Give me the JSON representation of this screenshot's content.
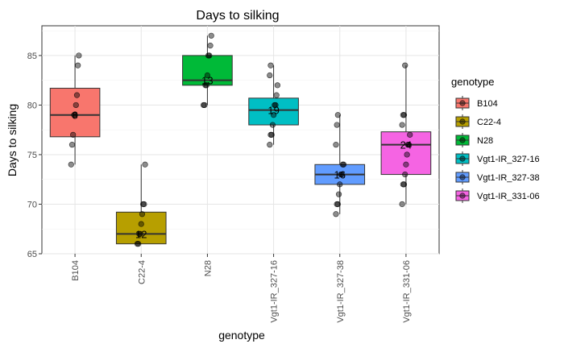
{
  "chart_data": {
    "type": "box",
    "title": "Days to silking",
    "xlabel": "genotype",
    "ylabel": "Days to silking",
    "ylim": [
      65,
      88
    ],
    "yticks": [
      65,
      70,
      75,
      80,
      85
    ],
    "grid": true,
    "legend": {
      "title": "genotype",
      "position": "right"
    },
    "categories": [
      "B104",
      "C22-4",
      "N28",
      "Vgt1-IR_327-16",
      "Vgt1-IR_327-38",
      "Vgt1-IR_331-06"
    ],
    "colors": [
      "#F8766D",
      "#B79F00",
      "#00BA38",
      "#00BFC4",
      "#619CFF",
      "#F564E3"
    ],
    "boxes": [
      {
        "q1": 76.8,
        "median": 79.0,
        "q3": 81.7,
        "whisker_low": 74,
        "whisker_high": 85,
        "count_label": "8"
      },
      {
        "q1": 66.0,
        "median": 67.0,
        "q3": 69.2,
        "whisker_low": 66,
        "whisker_high": 74,
        "count_label": "12"
      },
      {
        "q1": 82.0,
        "median": 82.5,
        "q3": 85.0,
        "whisker_low": 80,
        "whisker_high": 87,
        "count_label": "13"
      },
      {
        "q1": 78.0,
        "median": 79.5,
        "q3": 80.7,
        "whisker_low": 76,
        "whisker_high": 84,
        "count_label": "19"
      },
      {
        "q1": 72.0,
        "median": 73.0,
        "q3": 74.0,
        "whisker_low": 69,
        "whisker_high": 79,
        "count_label": "16"
      },
      {
        "q1": 73.0,
        "median": 76.0,
        "q3": 77.3,
        "whisker_low": 70,
        "whisker_high": 84,
        "count_label": "24"
      }
    ],
    "points": [
      [
        74,
        76,
        77,
        79,
        79,
        80,
        81,
        84,
        85
      ],
      [
        66,
        66,
        67,
        67,
        68,
        69,
        70,
        70,
        74
      ],
      [
        80,
        80,
        82,
        82,
        83,
        85,
        85,
        86,
        87
      ],
      [
        76,
        77,
        77,
        78,
        79,
        80,
        80,
        81,
        82,
        83,
        84
      ],
      [
        69,
        70,
        70,
        71,
        72,
        73,
        73,
        74,
        74,
        76,
        78,
        79
      ],
      [
        70,
        72,
        72,
        73,
        74,
        75,
        76,
        76,
        77,
        78,
        79,
        79,
        84
      ]
    ]
  }
}
